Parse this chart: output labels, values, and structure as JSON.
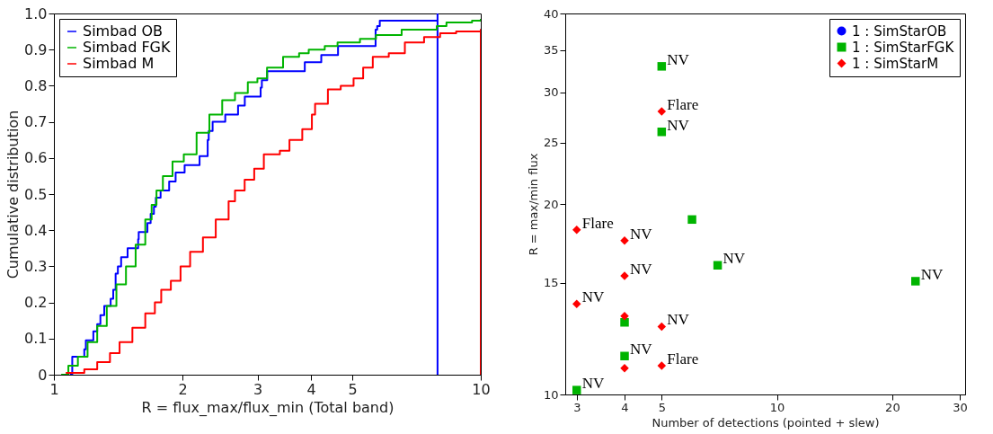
{
  "chart_data": [
    {
      "type": "step",
      "xlabel": "R = flux_max/flux_min (Total band)",
      "ylabel": "Cumulative distribution",
      "log": "x",
      "xlim": [
        1,
        10
      ],
      "xticks": [
        1,
        2,
        3,
        4,
        5,
        10
      ],
      "ylim": [
        0,
        1
      ],
      "yticks": [
        {
          "value": 0,
          "label": "0"
        },
        {
          "value": 0.1,
          "label": "0.1"
        },
        {
          "value": 0.2,
          "label": "0.2"
        },
        {
          "value": 0.3,
          "label": "0.3"
        },
        {
          "value": 0.4,
          "label": "0.4"
        },
        {
          "value": 0.5,
          "label": "0.5"
        },
        {
          "value": 0.6,
          "label": "0.6"
        },
        {
          "value": 0.7,
          "label": "0.7"
        },
        {
          "value": 0.8,
          "label": "0.8"
        },
        {
          "value": 0.9,
          "label": "0.9"
        },
        {
          "value": 1,
          "label": "1.0"
        }
      ],
      "legend": "top left",
      "series": [
        {
          "name": "Simbad OB",
          "color": "#0000ff",
          "x": [
            1.09,
            1.104,
            1.178,
            1.188,
            1.237,
            1.263,
            1.285,
            1.312,
            1.358,
            1.377,
            1.395,
            1.412,
            1.437,
            1.488,
            1.575,
            1.58,
            1.656,
            1.685,
            1.715,
            1.733,
            1.778,
            1.862,
            1.928,
            2.024,
            2.194,
            2.292,
            2.305,
            2.354,
            2.52,
            2.7,
            2.8,
            3.05,
            3.07,
            3.16,
            3.87,
            4.23,
            4.63,
            5.67,
            5.72,
            5.8,
            7.92,
            7.92,
            7.92
          ],
          "values": [
            0,
            0.05,
            0.07,
            0.095,
            0.12,
            0.14,
            0.165,
            0.19,
            0.21,
            0.235,
            0.28,
            0.3,
            0.325,
            0.35,
            0.375,
            0.395,
            0.42,
            0.445,
            0.465,
            0.49,
            0.51,
            0.535,
            0.56,
            0.58,
            0.605,
            0.65,
            0.675,
            0.7,
            0.72,
            0.745,
            0.77,
            0.795,
            0.815,
            0.84,
            0.865,
            0.885,
            0.91,
            0.955,
            0.965,
            0.98,
            0.98,
            1.0,
            0
          ]
        },
        {
          "name": "Simbad FGK",
          "color": "#00b400",
          "x": [
            1.04,
            1.081,
            1.138,
            1.199,
            1.263,
            1.33,
            1.401,
            1.475,
            1.554,
            1.637,
            1.694,
            1.739,
            1.8,
            1.896,
            2.015,
            2.159,
            2.313,
            2.479,
            2.656,
            2.846,
            2.997,
            3.157,
            3.442,
            3.753,
            3.953,
            4.31,
            4.618,
            5.212,
            5.683,
            6.526,
            7.887,
            8.31,
            9.54,
            10
          ],
          "values": [
            0,
            0.025,
            0.05,
            0.09,
            0.135,
            0.19,
            0.25,
            0.3,
            0.36,
            0.43,
            0.47,
            0.51,
            0.55,
            0.59,
            0.61,
            0.67,
            0.72,
            0.76,
            0.78,
            0.81,
            0.82,
            0.85,
            0.88,
            0.89,
            0.9,
            0.91,
            0.92,
            0.93,
            0.94,
            0.955,
            0.965,
            0.975,
            0.98,
            0.985
          ]
        },
        {
          "name": "Simbad M",
          "color": "#ff0000",
          "x": [
            1.066,
            1.178,
            1.263,
            1.353,
            1.425,
            1.527,
            1.637,
            1.724,
            1.784,
            1.879,
            1.98,
            2.085,
            2.234,
            2.394,
            2.566,
            2.656,
            2.798,
            2.946,
            3.103,
            3.383,
            3.563,
            3.818,
            4.021,
            4.091,
            4.384,
            4.698,
            5.035,
            5.302,
            5.585,
            6.088,
            6.64,
            7.365,
            8.03,
            8.756,
            10,
            10
          ],
          "values": [
            0.005,
            0.015,
            0.035,
            0.06,
            0.09,
            0.13,
            0.17,
            0.2,
            0.235,
            0.26,
            0.3,
            0.34,
            0.38,
            0.43,
            0.48,
            0.51,
            0.54,
            0.57,
            0.61,
            0.62,
            0.65,
            0.68,
            0.72,
            0.75,
            0.79,
            0.8,
            0.82,
            0.85,
            0.88,
            0.89,
            0.92,
            0.935,
            0.945,
            0.95,
            0.955,
            0
          ]
        }
      ]
    },
    {
      "type": "scatter",
      "xlabel": "Number of detections (pointed + slew)",
      "ylabel": "R = max/min flux",
      "log": "xy",
      "xlim": [
        2.8,
        31
      ],
      "xticks": [
        3,
        4,
        5,
        10,
        20,
        30
      ],
      "ylim": [
        10,
        40
      ],
      "yticks": [
        10,
        15,
        20,
        25,
        30,
        35,
        40
      ],
      "legend": "top right",
      "series": [
        {
          "name": "1 : SimStarOB",
          "color": "#0000ff",
          "marker": "circle"
        },
        {
          "name": "1 : SimStarFGK",
          "color": "#00b400",
          "marker": "square",
          "x": [
            5,
            5,
            6,
            7,
            23,
            4,
            4,
            3
          ],
          "values": [
            33.0,
            26.0,
            18.9,
            16.0,
            15.1,
            13.0,
            11.5,
            10.16
          ]
        },
        {
          "name": "1 : SimStarM",
          "color": "#ff0000",
          "marker": "diamond",
          "x": [
            5,
            3,
            4,
            4,
            3,
            4,
            5,
            5,
            4
          ],
          "values": [
            28.0,
            18.2,
            17.5,
            15.4,
            13.9,
            13.3,
            12.8,
            11.1,
            11.0
          ]
        }
      ],
      "annotations": [
        {
          "text": "NV",
          "x": 5,
          "y": 33.0
        },
        {
          "text": "Flare",
          "x": 5,
          "y": 28.0
        },
        {
          "text": "NV",
          "x": 5,
          "y": 26.0
        },
        {
          "text": "Flare",
          "x": 3,
          "y": 18.2
        },
        {
          "text": "NV",
          "x": 4,
          "y": 17.5
        },
        {
          "text": "NV",
          "x": 7,
          "y": 16.0
        },
        {
          "text": "NV",
          "x": 4,
          "y": 15.4
        },
        {
          "text": "NV",
          "x": 23,
          "y": 15.1
        },
        {
          "text": "NV",
          "x": 3,
          "y": 13.9
        },
        {
          "text": "NV",
          "x": 5,
          "y": 12.8
        },
        {
          "text": "NV",
          "x": 4,
          "y": 11.5
        },
        {
          "text": "Flare",
          "x": 5,
          "y": 11.1
        },
        {
          "text": "NV",
          "x": 3,
          "y": 10.16
        }
      ]
    }
  ]
}
